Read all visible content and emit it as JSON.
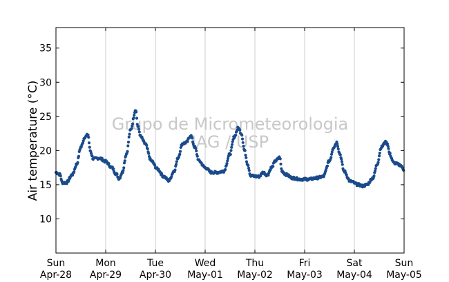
{
  "chart_data": {
    "type": "scatter",
    "title": "",
    "xlabel": "",
    "ylabel": "Air temperature (°C)",
    "ylim": [
      5,
      38
    ],
    "yticks": [
      10,
      15,
      20,
      25,
      30,
      35
    ],
    "xlim": [
      "2013-04-28T00:00",
      "2013-05-05T00:00"
    ],
    "x_ticks": [
      {
        "day": "Sun",
        "date": "Apr-28"
      },
      {
        "day": "Mon",
        "date": "Apr-29"
      },
      {
        "day": "Tue",
        "date": "Apr-30"
      },
      {
        "day": "Wed",
        "date": "May-01"
      },
      {
        "day": "Thu",
        "date": "May-02"
      },
      {
        "day": "Fri",
        "date": "May-03"
      },
      {
        "day": "Sat",
        "date": "May-04"
      },
      {
        "day": "Sun",
        "date": "May-05"
      }
    ],
    "grid": "vertical",
    "watermark": [
      "Grupo de Micrometeorologia",
      "IAG / USP"
    ],
    "colors": {
      "marker": "#1a4a8a",
      "grid": "#cccccc"
    },
    "series": [
      {
        "name": "",
        "points": [
          [
            "04-28 00:00",
            16.8
          ],
          [
            "04-28 02:00",
            16.5
          ],
          [
            "04-28 03:00",
            15.3
          ],
          [
            "04-28 05:00",
            15.3
          ],
          [
            "04-28 08:00",
            16.5
          ],
          [
            "04-28 10:00",
            18.0
          ],
          [
            "04-28 12:00",
            20.5
          ],
          [
            "04-28 14:00",
            22.0
          ],
          [
            "04-28 15:30",
            22.3
          ],
          [
            "04-28 16:30",
            20.0
          ],
          [
            "04-28 18:00",
            18.8
          ],
          [
            "04-28 21:00",
            18.9
          ],
          [
            "04-29 00:00",
            18.4
          ],
          [
            "04-29 03:00",
            17.5
          ],
          [
            "04-29 05:00",
            16.6
          ],
          [
            "04-29 06:30",
            15.9
          ],
          [
            "04-29 08:00",
            16.8
          ],
          [
            "04-29 10:00",
            19.5
          ],
          [
            "04-29 12:00",
            23.0
          ],
          [
            "04-29 14:30",
            26.0
          ],
          [
            "04-29 15:30",
            23.5
          ],
          [
            "04-29 17:00",
            22.0
          ],
          [
            "04-29 19:00",
            21.0
          ],
          [
            "04-29 22:00",
            18.5
          ],
          [
            "04-30 01:00",
            17.3
          ],
          [
            "04-30 04:00",
            16.2
          ],
          [
            "04-30 06:30",
            15.6
          ],
          [
            "04-30 09:00",
            17.0
          ],
          [
            "04-30 11:00",
            19.0
          ],
          [
            "04-30 13:00",
            21.0
          ],
          [
            "04-30 15:00",
            21.2
          ],
          [
            "04-30 17:00",
            22.2
          ],
          [
            "04-30 19:00",
            20.5
          ],
          [
            "04-30 21:00",
            18.5
          ],
          [
            "05-01 00:00",
            17.5
          ],
          [
            "05-01 03:00",
            16.8
          ],
          [
            "05-01 06:00",
            16.8
          ],
          [
            "05-01 09:00",
            17.0
          ],
          [
            "05-01 12:00",
            19.5
          ],
          [
            "05-01 14:00",
            22.0
          ],
          [
            "05-01 16:00",
            23.3
          ],
          [
            "05-01 17:30",
            22.5
          ],
          [
            "05-01 19:00",
            20.0
          ],
          [
            "05-01 20:30",
            18.0
          ],
          [
            "05-01 22:00",
            16.3
          ],
          [
            "05-02 02:00",
            16.2
          ],
          [
            "05-02 04:00",
            16.8
          ],
          [
            "05-02 06:00",
            16.4
          ],
          [
            "05-02 08:00",
            17.5
          ],
          [
            "05-02 10:00",
            18.5
          ],
          [
            "05-02 12:00",
            19.0
          ],
          [
            "05-02 13:00",
            17.0
          ],
          [
            "05-02 15:00",
            16.5
          ],
          [
            "05-02 18:00",
            16.0
          ],
          [
            "05-02 22:00",
            15.8
          ],
          [
            "05-03 02:00",
            15.8
          ],
          [
            "05-03 06:00",
            16.0
          ],
          [
            "05-03 09:00",
            16.2
          ],
          [
            "05-03 12:00",
            18.5
          ],
          [
            "05-03 14:00",
            20.5
          ],
          [
            "05-03 15:30",
            21.2
          ],
          [
            "05-03 17:00",
            19.5
          ],
          [
            "05-03 19:00",
            17.0
          ],
          [
            "05-03 22:00",
            15.5
          ],
          [
            "05-04 02:00",
            15.0
          ],
          [
            "05-04 04:00",
            14.8
          ],
          [
            "05-04 06:00",
            15.0
          ],
          [
            "05-04 09:00",
            16.0
          ],
          [
            "05-04 11:00",
            18.0
          ],
          [
            "05-04 13:00",
            20.5
          ],
          [
            "05-04 15:00",
            21.2
          ],
          [
            "05-04 16:00",
            21.0
          ],
          [
            "05-04 17:00",
            19.5
          ],
          [
            "05-04 19:00",
            18.2
          ],
          [
            "05-04 22:00",
            17.9
          ],
          [
            "05-05 00:00",
            17.2
          ]
        ]
      }
    ]
  }
}
